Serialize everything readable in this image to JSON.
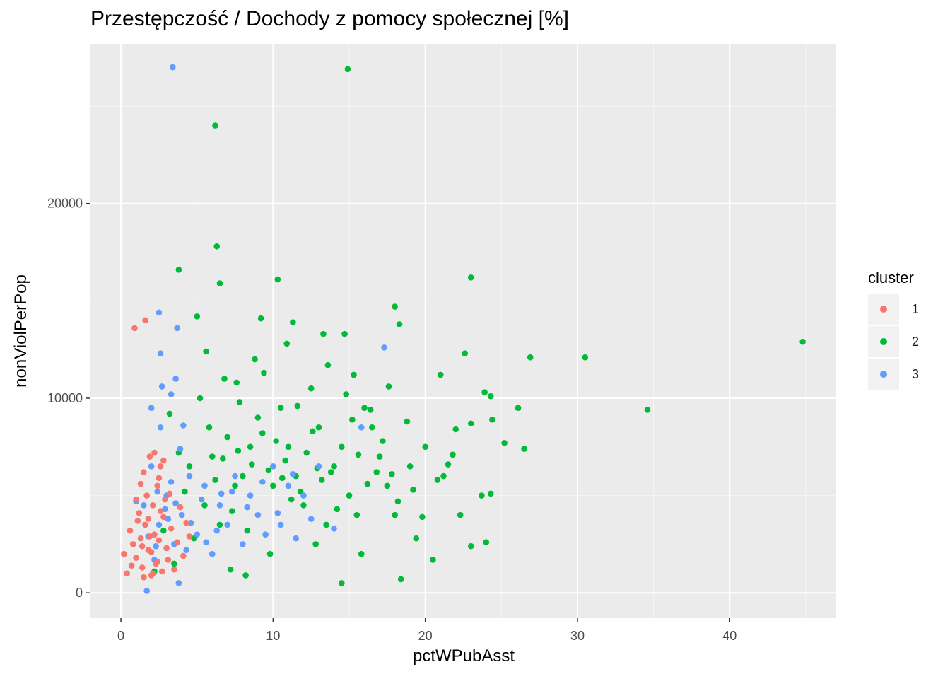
{
  "chart_data": {
    "type": "scatter",
    "title": "Przestępczość / Dochody z pomocy społecznej [%]",
    "xlabel": "pctWPubAsst",
    "ylabel": "nonViolPerPop",
    "xlim": [
      -2,
      47
    ],
    "ylim": [
      -1300,
      28200
    ],
    "x_ticks": [
      0,
      10,
      20,
      30,
      40
    ],
    "x_tick_labels": [
      "0",
      "10",
      "20",
      "30",
      "40"
    ],
    "y_ticks": [
      0,
      10000,
      20000
    ],
    "y_tick_labels": [
      "0",
      "10000",
      "20000"
    ],
    "grid": true,
    "legend": {
      "title": "cluster",
      "position": "right"
    },
    "series": [
      {
        "name": "1",
        "color": "#F8766D",
        "points": [
          [
            0.9,
            13600
          ],
          [
            1.6,
            14000
          ],
          [
            0.2,
            2000
          ],
          [
            0.4,
            1000
          ],
          [
            0.6,
            3200
          ],
          [
            0.8,
            2500
          ],
          [
            1.0,
            1800
          ],
          [
            1.2,
            4100
          ],
          [
            1.4,
            1300
          ],
          [
            1.5,
            6200
          ],
          [
            1.6,
            3500
          ],
          [
            1.7,
            5000
          ],
          [
            1.8,
            2200
          ],
          [
            1.9,
            7000
          ],
          [
            2.0,
            900
          ],
          [
            2.1,
            4500
          ],
          [
            2.2,
            3000
          ],
          [
            2.3,
            1500
          ],
          [
            2.4,
            5500
          ],
          [
            2.5,
            2700
          ],
          [
            2.6,
            6500
          ],
          [
            2.7,
            1100
          ],
          [
            2.8,
            3900
          ],
          [
            2.9,
            4800
          ],
          [
            3.0,
            2300
          ],
          [
            3.1,
            1700
          ],
          [
            3.3,
            3300
          ],
          [
            3.5,
            1200
          ],
          [
            3.7,
            2600
          ],
          [
            3.9,
            4400
          ],
          [
            4.1,
            1900
          ],
          [
            4.3,
            3600
          ],
          [
            4.5,
            2900
          ],
          [
            1.1,
            3700
          ],
          [
            1.3,
            2800
          ],
          [
            0.7,
            1400
          ],
          [
            1.5,
            800
          ],
          [
            2.0,
            2100
          ],
          [
            2.2,
            7200
          ],
          [
            2.5,
            5900
          ],
          [
            1.9,
            2900
          ],
          [
            2.4,
            1600
          ],
          [
            1.0,
            4800
          ],
          [
            1.3,
            5600
          ],
          [
            1.8,
            3800
          ],
          [
            2.6,
            4200
          ],
          [
            3.2,
            5100
          ],
          [
            2.8,
            6800
          ],
          [
            1.4,
            2400
          ],
          [
            2.1,
            1000
          ]
        ]
      },
      {
        "name": "2",
        "color": "#00BA38",
        "points": [
          [
            14.9,
            26900
          ],
          [
            6.2,
            24000
          ],
          [
            6.3,
            17800
          ],
          [
            3.8,
            16600
          ],
          [
            10.3,
            16100
          ],
          [
            6.5,
            15900
          ],
          [
            23.0,
            16200
          ],
          [
            44.8,
            12900
          ],
          [
            30.5,
            12100
          ],
          [
            26.9,
            12100
          ],
          [
            34.6,
            9400
          ],
          [
            18.0,
            14700
          ],
          [
            18.3,
            13800
          ],
          [
            22.6,
            12300
          ],
          [
            5.0,
            14200
          ],
          [
            9.2,
            14100
          ],
          [
            11.3,
            13900
          ],
          [
            13.3,
            13300
          ],
          [
            14.7,
            13300
          ],
          [
            21.0,
            11200
          ],
          [
            23.9,
            10300
          ],
          [
            24.3,
            10100
          ],
          [
            26.1,
            9500
          ],
          [
            25.2,
            7700
          ],
          [
            26.5,
            7400
          ],
          [
            21.8,
            7100
          ],
          [
            23.0,
            8700
          ],
          [
            24.4,
            8900
          ],
          [
            23.7,
            5000
          ],
          [
            24.3,
            5100
          ],
          [
            24.0,
            2600
          ],
          [
            23.0,
            2400
          ],
          [
            20.5,
            1700
          ],
          [
            18.4,
            700
          ],
          [
            14.5,
            500
          ],
          [
            22.3,
            4000
          ],
          [
            21.2,
            6000
          ],
          [
            19.4,
            2800
          ],
          [
            6.0,
            7000
          ],
          [
            7.0,
            8000
          ],
          [
            8.0,
            6000
          ],
          [
            9.0,
            9000
          ],
          [
            10.0,
            5500
          ],
          [
            11.0,
            7500
          ],
          [
            12.0,
            4500
          ],
          [
            13.0,
            8500
          ],
          [
            14.0,
            6500
          ],
          [
            15.0,
            5000
          ],
          [
            16.0,
            9500
          ],
          [
            17.0,
            7000
          ],
          [
            18.0,
            4000
          ],
          [
            19.0,
            6500
          ],
          [
            20.0,
            7500
          ],
          [
            5.5,
            4500
          ],
          [
            6.5,
            3500
          ],
          [
            7.5,
            5500
          ],
          [
            8.5,
            7500
          ],
          [
            9.5,
            3000
          ],
          [
            10.5,
            9500
          ],
          [
            11.5,
            6000
          ],
          [
            12.5,
            10500
          ],
          [
            13.5,
            3500
          ],
          [
            14.5,
            7500
          ],
          [
            15.5,
            4000
          ],
          [
            16.5,
            8500
          ],
          [
            17.5,
            5500
          ],
          [
            5.2,
            10000
          ],
          [
            6.8,
            11000
          ],
          [
            8.8,
            12000
          ],
          [
            9.8,
            2000
          ],
          [
            12.8,
            2500
          ],
          [
            15.8,
            2000
          ],
          [
            7.2,
            1200
          ],
          [
            8.2,
            900
          ],
          [
            4.5,
            6500
          ],
          [
            5.8,
            8500
          ],
          [
            7.8,
            9800
          ],
          [
            9.3,
            8200
          ],
          [
            10.8,
            6800
          ],
          [
            11.8,
            5200
          ],
          [
            13.8,
            6200
          ],
          [
            16.8,
            6200
          ],
          [
            18.8,
            8800
          ],
          [
            20.8,
            5800
          ],
          [
            4.8,
            2800
          ],
          [
            6.2,
            5800
          ],
          [
            7.3,
            4200
          ],
          [
            8.3,
            3200
          ],
          [
            9.7,
            6300
          ],
          [
            10.2,
            7800
          ],
          [
            11.2,
            4800
          ],
          [
            12.2,
            7200
          ],
          [
            13.2,
            5800
          ],
          [
            14.2,
            4300
          ],
          [
            15.2,
            8900
          ],
          [
            16.2,
            5600
          ],
          [
            17.2,
            7800
          ],
          [
            18.2,
            4700
          ],
          [
            19.2,
            5300
          ],
          [
            5.6,
            12400
          ],
          [
            3.2,
            9200
          ],
          [
            3.8,
            7200
          ],
          [
            4.2,
            5200
          ],
          [
            2.8,
            3200
          ],
          [
            3.5,
            1500
          ],
          [
            2.2,
            1100
          ],
          [
            7.6,
            10800
          ],
          [
            9.4,
            11300
          ],
          [
            11.6,
            9600
          ],
          [
            12.6,
            8300
          ],
          [
            14.8,
            10200
          ],
          [
            16.4,
            9400
          ],
          [
            8.6,
            6600
          ],
          [
            6.7,
            6900
          ],
          [
            7.7,
            7300
          ],
          [
            10.6,
            5900
          ],
          [
            12.9,
            6400
          ],
          [
            15.6,
            7100
          ],
          [
            17.8,
            6100
          ],
          [
            19.8,
            3900
          ],
          [
            21.5,
            6600
          ],
          [
            22.0,
            8400
          ],
          [
            10.9,
            12800
          ],
          [
            13.6,
            11700
          ],
          [
            15.3,
            11200
          ],
          [
            17.6,
            10600
          ]
        ]
      },
      {
        "name": "3",
        "color": "#619CFF",
        "points": [
          [
            3.4,
            27000
          ],
          [
            2.5,
            14400
          ],
          [
            3.7,
            13600
          ],
          [
            2.6,
            12300
          ],
          [
            17.3,
            12600
          ],
          [
            2.7,
            10600
          ],
          [
            3.3,
            10200
          ],
          [
            3.6,
            11000
          ],
          [
            2.0,
            9500
          ],
          [
            4.1,
            8600
          ],
          [
            2.6,
            8500
          ],
          [
            15.8,
            8500
          ],
          [
            3.9,
            7400
          ],
          [
            1.0,
            4700
          ],
          [
            1.5,
            4500
          ],
          [
            2.0,
            6500
          ],
          [
            2.5,
            3500
          ],
          [
            3.0,
            5000
          ],
          [
            3.5,
            2500
          ],
          [
            4.0,
            4000
          ],
          [
            4.5,
            6000
          ],
          [
            5.0,
            3000
          ],
          [
            5.5,
            5500
          ],
          [
            6.0,
            2000
          ],
          [
            6.5,
            4500
          ],
          [
            7.0,
            3500
          ],
          [
            7.5,
            6000
          ],
          [
            8.0,
            2500
          ],
          [
            8.5,
            5000
          ],
          [
            9.0,
            4000
          ],
          [
            9.5,
            3000
          ],
          [
            10.0,
            6500
          ],
          [
            10.5,
            3500
          ],
          [
            11.0,
            5500
          ],
          [
            11.5,
            2800
          ],
          [
            12.0,
            5000
          ],
          [
            12.5,
            3800
          ],
          [
            13.0,
            6500
          ],
          [
            14.0,
            3300
          ],
          [
            1.7,
            100
          ],
          [
            3.8,
            500
          ],
          [
            2.2,
            1700
          ],
          [
            2.9,
            4300
          ],
          [
            3.3,
            5700
          ],
          [
            4.3,
            2200
          ],
          [
            5.3,
            4800
          ],
          [
            6.3,
            3200
          ],
          [
            7.3,
            5200
          ],
          [
            8.3,
            4400
          ],
          [
            9.3,
            5700
          ],
          [
            10.3,
            4100
          ],
          [
            11.3,
            6100
          ],
          [
            2.4,
            5200
          ],
          [
            3.1,
            3800
          ],
          [
            3.6,
            4600
          ],
          [
            4.6,
            3600
          ],
          [
            5.6,
            2600
          ],
          [
            6.6,
            5100
          ],
          [
            1.8,
            2900
          ],
          [
            2.3,
            2400
          ]
        ]
      }
    ]
  }
}
